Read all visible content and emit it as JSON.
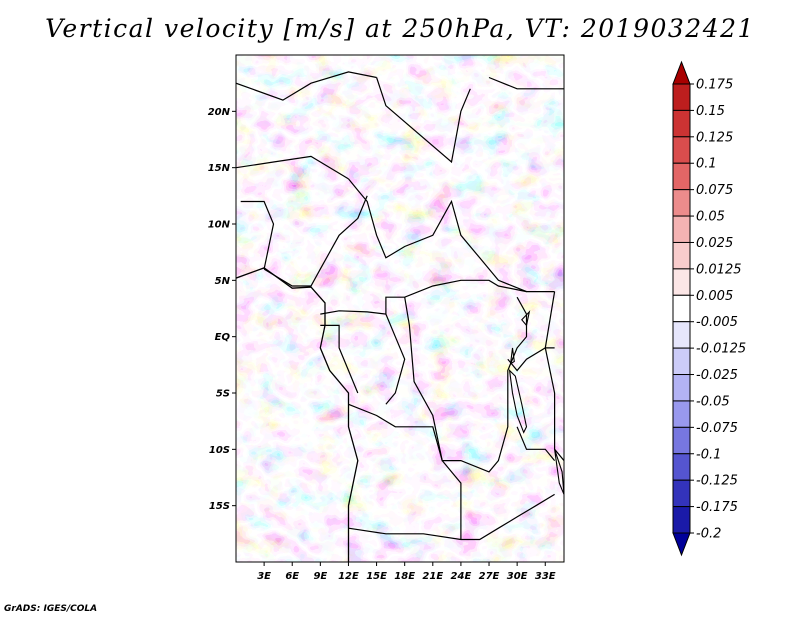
{
  "title": "Vertical velocity [m/s] at 250hPa, VT: 2019032421",
  "footer": "GrADS: IGES/COLA",
  "map": {
    "lon_range": [
      0,
      35
    ],
    "lat_range": [
      -20,
      25
    ],
    "lat_ticks": [
      {
        "value": 20,
        "label": "20N"
      },
      {
        "value": 15,
        "label": "15N"
      },
      {
        "value": 10,
        "label": "10N"
      },
      {
        "value": 5,
        "label": "5N"
      },
      {
        "value": 0,
        "label": "EQ"
      },
      {
        "value": -5,
        "label": "5S"
      },
      {
        "value": -10,
        "label": "10S"
      },
      {
        "value": -15,
        "label": "15S"
      }
    ],
    "lon_ticks": [
      {
        "value": 3,
        "label": "3E"
      },
      {
        "value": 6,
        "label": "6E"
      },
      {
        "value": 9,
        "label": "9E"
      },
      {
        "value": 12,
        "label": "12E"
      },
      {
        "value": 15,
        "label": "15E"
      },
      {
        "value": 18,
        "label": "18E"
      },
      {
        "value": 21,
        "label": "21E"
      },
      {
        "value": 24,
        "label": "24E"
      },
      {
        "value": 27,
        "label": "27E"
      },
      {
        "value": 30,
        "label": "30E"
      },
      {
        "value": 33,
        "label": "33E"
      }
    ],
    "borders": [
      [
        [
          0,
          22.5
        ],
        [
          5,
          21
        ],
        [
          8,
          22.5
        ],
        [
          12,
          23.5
        ],
        [
          15,
          23
        ]
      ],
      [
        [
          15,
          23
        ],
        [
          16,
          20.5
        ],
        [
          23,
          15.5
        ],
        [
          24,
          20
        ],
        [
          25,
          22
        ]
      ],
      [
        [
          0,
          15
        ],
        [
          4,
          15.5
        ],
        [
          8,
          16
        ],
        [
          12,
          14
        ]
      ],
      [
        [
          12,
          14
        ],
        [
          13,
          13
        ],
        [
          14,
          12
        ],
        [
          15,
          9
        ],
        [
          16,
          7
        ],
        [
          18,
          8
        ],
        [
          21,
          9
        ],
        [
          23,
          12
        ],
        [
          24,
          9
        ],
        [
          26,
          7
        ],
        [
          28,
          5
        ],
        [
          31,
          4
        ],
        [
          34,
          4
        ]
      ],
      [
        [
          3,
          6
        ],
        [
          4,
          10
        ],
        [
          3,
          12
        ],
        [
          0.5,
          12
        ]
      ],
      [
        [
          3,
          6
        ],
        [
          6,
          4.5
        ],
        [
          8,
          4.5
        ],
        [
          9,
          6
        ],
        [
          11,
          9
        ],
        [
          13,
          10.5
        ],
        [
          14,
          12.5
        ]
      ],
      [
        [
          9,
          2
        ],
        [
          11,
          2.3
        ],
        [
          14,
          2.2
        ],
        [
          16,
          2
        ],
        [
          16,
          3.5
        ],
        [
          18,
          3.5
        ],
        [
          21,
          4.5
        ],
        [
          24,
          5
        ],
        [
          27,
          5
        ],
        [
          28,
          4.5
        ],
        [
          31,
          4
        ]
      ],
      [
        [
          9,
          1
        ],
        [
          11,
          1
        ],
        [
          11,
          -1
        ],
        [
          12,
          -3
        ],
        [
          13,
          -5
        ]
      ],
      [
        [
          16,
          2
        ],
        [
          17,
          0
        ],
        [
          18,
          -2
        ],
        [
          17,
          -5
        ],
        [
          16,
          -6
        ]
      ],
      [
        [
          18,
          3.5
        ],
        [
          18.5,
          1
        ],
        [
          19,
          -4
        ],
        [
          21,
          -7
        ],
        [
          22,
          -11
        ],
        [
          24,
          -11
        ],
        [
          27,
          -12
        ],
        [
          28,
          -11
        ],
        [
          29,
          -8
        ],
        [
          29,
          -3
        ],
        [
          30,
          -1
        ],
        [
          31,
          0
        ],
        [
          31,
          2
        ],
        [
          30,
          3.5
        ]
      ],
      [
        [
          12,
          -6
        ],
        [
          15,
          -7
        ],
        [
          17,
          -8
        ],
        [
          21,
          -8
        ],
        [
          22,
          -11
        ],
        [
          24,
          -13
        ],
        [
          24,
          -18
        ]
      ],
      [
        [
          12,
          -17
        ],
        [
          16,
          -17.5
        ],
        [
          20,
          -17.5
        ],
        [
          24,
          -18
        ],
        [
          26,
          -18
        ],
        [
          28,
          -17
        ],
        [
          30,
          -16
        ],
        [
          32,
          -15
        ],
        [
          34,
          -14
        ]
      ],
      [
        [
          29,
          -2
        ],
        [
          30,
          -3
        ],
        [
          31,
          -2
        ],
        [
          33,
          -1
        ],
        [
          34,
          -1
        ]
      ],
      [
        [
          30,
          -8
        ],
        [
          31,
          -10
        ],
        [
          33,
          -10
        ],
        [
          34,
          -11
        ]
      ],
      [
        [
          34,
          4
        ],
        [
          33,
          -1
        ],
        [
          34,
          -5
        ],
        [
          34,
          -10
        ],
        [
          35,
          -11
        ]
      ],
      [
        [
          27,
          23
        ],
        [
          30,
          22
        ],
        [
          35,
          22
        ]
      ]
    ],
    "coastline": [
      [
        0,
        5.2
      ],
      [
        3,
        6.1
      ],
      [
        6,
        4.3
      ],
      [
        8,
        4.4
      ],
      [
        9.5,
        3
      ],
      [
        9.5,
        1
      ],
      [
        9,
        -1
      ],
      [
        10,
        -3
      ],
      [
        11,
        -4
      ],
      [
        12,
        -5
      ],
      [
        12,
        -8
      ],
      [
        13,
        -11
      ],
      [
        12,
        -15
      ],
      [
        12,
        -20
      ]
    ],
    "lakes": [
      [
        [
          29.2,
          -3
        ],
        [
          29.5,
          -5
        ],
        [
          30,
          -7
        ],
        [
          30.7,
          -8.5
        ],
        [
          31,
          -8
        ],
        [
          30.5,
          -6
        ],
        [
          29.8,
          -3.5
        ]
      ],
      [
        [
          29.5,
          -1
        ],
        [
          29.7,
          -2.2
        ],
        [
          29.3,
          -2.4
        ]
      ],
      [
        [
          34,
          -10
        ],
        [
          34.8,
          -12
        ],
        [
          35,
          -14
        ],
        [
          34.5,
          -13
        ]
      ],
      [
        [
          30.5,
          1.5
        ],
        [
          31.3,
          2.2
        ],
        [
          31,
          1
        ]
      ]
    ]
  },
  "colorbar": {
    "levels": [
      "0.175",
      "0.15",
      "0.125",
      "0.1",
      "0.075",
      "0.05",
      "0.025",
      "0.0125",
      "0.005",
      "-0.005",
      "-0.0125",
      "-0.025",
      "-0.05",
      "-0.075",
      "-0.1",
      "-0.125",
      "-0.175",
      "-0.2"
    ],
    "colors": [
      "#a80000",
      "#bd1e1e",
      "#cc3333",
      "#d94d4d",
      "#e36666",
      "#ec8c8c",
      "#f4b3b3",
      "#f8cccc",
      "#fce6e6",
      "#ffffff",
      "#e6e6fc",
      "#ccccf8",
      "#b3b3f4",
      "#9999ee",
      "#7777e0",
      "#5555d0",
      "#3333bb",
      "#1a1aa8",
      "#00009a"
    ]
  }
}
